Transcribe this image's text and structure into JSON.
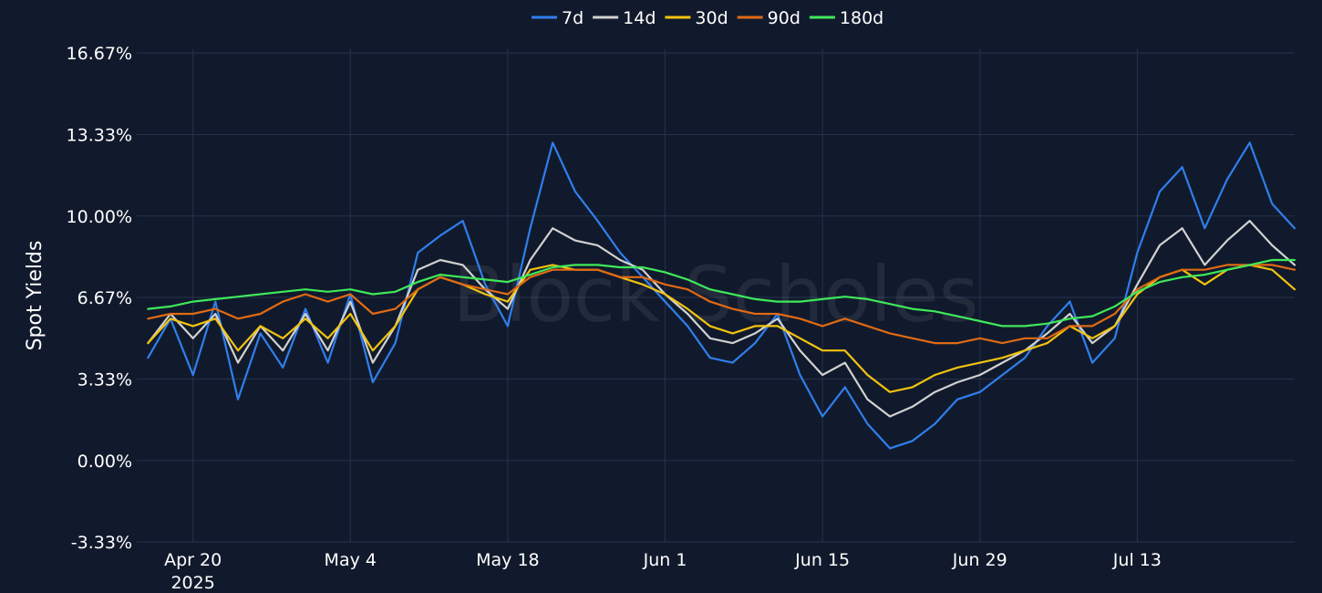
{
  "chart_data": {
    "type": "line",
    "title": "",
    "xlabel": "",
    "ylabel": "Spot Yields",
    "watermark": "Block Scholes",
    "ylim": [
      -3.33,
      16.67
    ],
    "y_ticks": [
      "16.67%",
      "13.33%",
      "10.00%",
      "6.67%",
      "3.33%",
      "0.00%",
      "-3.33%"
    ],
    "y_tick_values": [
      16.67,
      13.33,
      10.0,
      6.67,
      3.33,
      0.0,
      -3.33
    ],
    "x_range": [
      "2025-04-15",
      "2025-07-27"
    ],
    "x_ticks": [
      {
        "date": "2025-04-20",
        "label": "Apr 20",
        "sublabel": "2025"
      },
      {
        "date": "2025-05-04",
        "label": "May 4",
        "sublabel": ""
      },
      {
        "date": "2025-05-18",
        "label": "May 18",
        "sublabel": ""
      },
      {
        "date": "2025-06-01",
        "label": "Jun 1",
        "sublabel": ""
      },
      {
        "date": "2025-06-15",
        "label": "Jun 15",
        "sublabel": ""
      },
      {
        "date": "2025-06-29",
        "label": "Jun 29",
        "sublabel": ""
      },
      {
        "date": "2025-07-13",
        "label": "Jul 13",
        "sublabel": ""
      }
    ],
    "grid": true,
    "legend_position": "top-center",
    "dates": [
      "2025-04-16",
      "2025-04-18",
      "2025-04-20",
      "2025-04-22",
      "2025-04-24",
      "2025-04-26",
      "2025-04-28",
      "2025-04-30",
      "2025-05-02",
      "2025-05-04",
      "2025-05-06",
      "2025-05-08",
      "2025-05-10",
      "2025-05-12",
      "2025-05-14",
      "2025-05-16",
      "2025-05-18",
      "2025-05-20",
      "2025-05-22",
      "2025-05-24",
      "2025-05-26",
      "2025-05-28",
      "2025-05-30",
      "2025-06-01",
      "2025-06-03",
      "2025-06-05",
      "2025-06-07",
      "2025-06-09",
      "2025-06-11",
      "2025-06-13",
      "2025-06-15",
      "2025-06-17",
      "2025-06-19",
      "2025-06-21",
      "2025-06-23",
      "2025-06-25",
      "2025-06-27",
      "2025-06-29",
      "2025-07-01",
      "2025-07-03",
      "2025-07-05",
      "2025-07-07",
      "2025-07-09",
      "2025-07-11",
      "2025-07-13",
      "2025-07-15",
      "2025-07-17",
      "2025-07-19",
      "2025-07-21",
      "2025-07-23",
      "2025-07-25",
      "2025-07-27"
    ],
    "series": [
      {
        "name": "7d",
        "color": "#2f7fed",
        "values": [
          4.2,
          5.8,
          3.5,
          6.5,
          2.5,
          5.2,
          3.8,
          6.2,
          4.0,
          6.8,
          3.2,
          4.8,
          8.5,
          9.2,
          9.8,
          7.2,
          5.5,
          9.5,
          13.0,
          11.0,
          9.8,
          8.5,
          7.5,
          6.5,
          5.5,
          4.2,
          4.0,
          4.8,
          6.0,
          3.5,
          1.8,
          3.0,
          1.5,
          0.5,
          0.8,
          1.5,
          2.5,
          2.8,
          3.5,
          4.2,
          5.5,
          6.5,
          4.0,
          5.0,
          8.5,
          11.0,
          12.0,
          9.5,
          11.5,
          13.0,
          10.5,
          9.5
        ]
      },
      {
        "name": "14d",
        "color": "#d1d1d1",
        "values": [
          4.8,
          6.0,
          5.0,
          6.0,
          4.0,
          5.5,
          4.5,
          6.0,
          4.5,
          6.5,
          4.0,
          5.5,
          7.8,
          8.2,
          8.0,
          7.0,
          6.2,
          8.2,
          9.5,
          9.0,
          8.8,
          8.2,
          7.8,
          6.8,
          6.0,
          5.0,
          4.8,
          5.2,
          5.8,
          4.5,
          3.5,
          4.0,
          2.5,
          1.8,
          2.2,
          2.8,
          3.2,
          3.5,
          4.0,
          4.5,
          5.2,
          6.0,
          4.8,
          5.5,
          7.2,
          8.8,
          9.5,
          8.0,
          9.0,
          9.8,
          8.8,
          8.0
        ]
      },
      {
        "name": "30d",
        "color": "#f2c30f",
        "values": [
          4.8,
          5.8,
          5.5,
          5.8,
          4.5,
          5.5,
          5.0,
          5.8,
          5.0,
          6.0,
          4.5,
          5.5,
          7.0,
          7.5,
          7.2,
          6.8,
          6.5,
          7.8,
          8.0,
          7.8,
          7.8,
          7.5,
          7.2,
          6.8,
          6.2,
          5.5,
          5.2,
          5.5,
          5.5,
          5.0,
          4.5,
          4.5,
          3.5,
          2.8,
          3.0,
          3.5,
          3.8,
          4.0,
          4.2,
          4.5,
          4.8,
          5.5,
          5.0,
          5.5,
          6.8,
          7.5,
          7.8,
          7.2,
          7.8,
          8.0,
          7.8,
          7.0
        ]
      },
      {
        "name": "90d",
        "color": "#e06a14",
        "values": [
          5.8,
          6.0,
          6.0,
          6.2,
          5.8,
          6.0,
          6.5,
          6.8,
          6.5,
          6.8,
          6.0,
          6.2,
          7.0,
          7.5,
          7.2,
          7.0,
          6.8,
          7.5,
          7.8,
          7.8,
          7.8,
          7.5,
          7.5,
          7.2,
          7.0,
          6.5,
          6.2,
          6.0,
          6.0,
          5.8,
          5.5,
          5.8,
          5.5,
          5.2,
          5.0,
          4.8,
          4.8,
          5.0,
          4.8,
          5.0,
          5.0,
          5.5,
          5.5,
          6.0,
          7.0,
          7.5,
          7.8,
          7.8,
          8.0,
          8.0,
          8.0,
          7.8
        ]
      },
      {
        "name": "180d",
        "color": "#3fe85a",
        "values": [
          6.2,
          6.3,
          6.5,
          6.6,
          6.7,
          6.8,
          6.9,
          7.0,
          6.9,
          7.0,
          6.8,
          6.9,
          7.3,
          7.6,
          7.5,
          7.4,
          7.3,
          7.6,
          7.9,
          8.0,
          8.0,
          7.9,
          7.9,
          7.7,
          7.4,
          7.0,
          6.8,
          6.6,
          6.5,
          6.5,
          6.6,
          6.7,
          6.6,
          6.4,
          6.2,
          6.1,
          5.9,
          5.7,
          5.5,
          5.5,
          5.6,
          5.8,
          5.9,
          6.3,
          6.9,
          7.3,
          7.5,
          7.6,
          7.8,
          8.0,
          8.2,
          8.2
        ]
      }
    ]
  }
}
